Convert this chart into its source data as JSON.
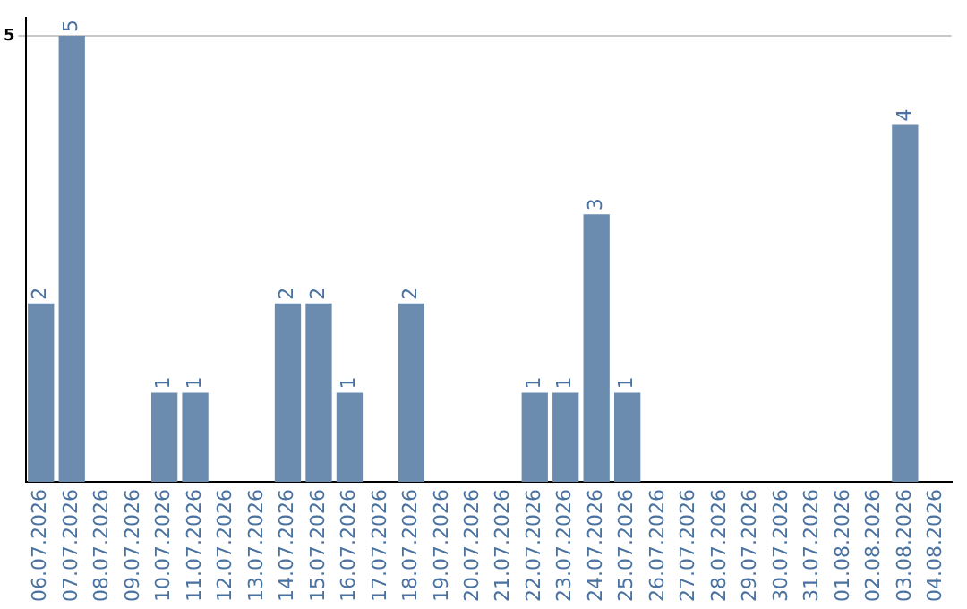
{
  "chart_data": {
    "type": "bar",
    "categories": [
      "06.07.2026",
      "07.07.2026",
      "08.07.2026",
      "09.07.2026",
      "10.07.2026",
      "11.07.2026",
      "12.07.2026",
      "13.07.2026",
      "14.07.2026",
      "15.07.2026",
      "16.07.2026",
      "17.07.2026",
      "18.07.2026",
      "19.07.2026",
      "20.07.2026",
      "21.07.2026",
      "22.07.2026",
      "23.07.2026",
      "24.07.2026",
      "25.07.2026",
      "26.07.2026",
      "27.07.2026",
      "28.07.2026",
      "29.07.2026",
      "30.07.2026",
      "31.07.2026",
      "01.08.2026",
      "02.08.2026",
      "03.08.2026",
      "04.08.2026"
    ],
    "values": [
      2,
      5,
      0,
      0,
      1,
      1,
      0,
      0,
      2,
      2,
      1,
      0,
      2,
      0,
      0,
      0,
      1,
      1,
      3,
      1,
      0,
      0,
      0,
      0,
      0,
      0,
      0,
      0,
      4,
      0
    ],
    "value_labels": [
      "2",
      "5",
      null,
      null,
      "1",
      "1",
      null,
      null,
      "2",
      "2",
      "1",
      null,
      "2",
      null,
      null,
      null,
      "1",
      "1",
      "3",
      "1",
      null,
      null,
      null,
      null,
      null,
      null,
      null,
      null,
      "4",
      null
    ],
    "color": "#6b8cae",
    "ylim": [
      0,
      5.2
    ],
    "yticks": [
      5
    ],
    "grid": "y",
    "legend": false
  }
}
